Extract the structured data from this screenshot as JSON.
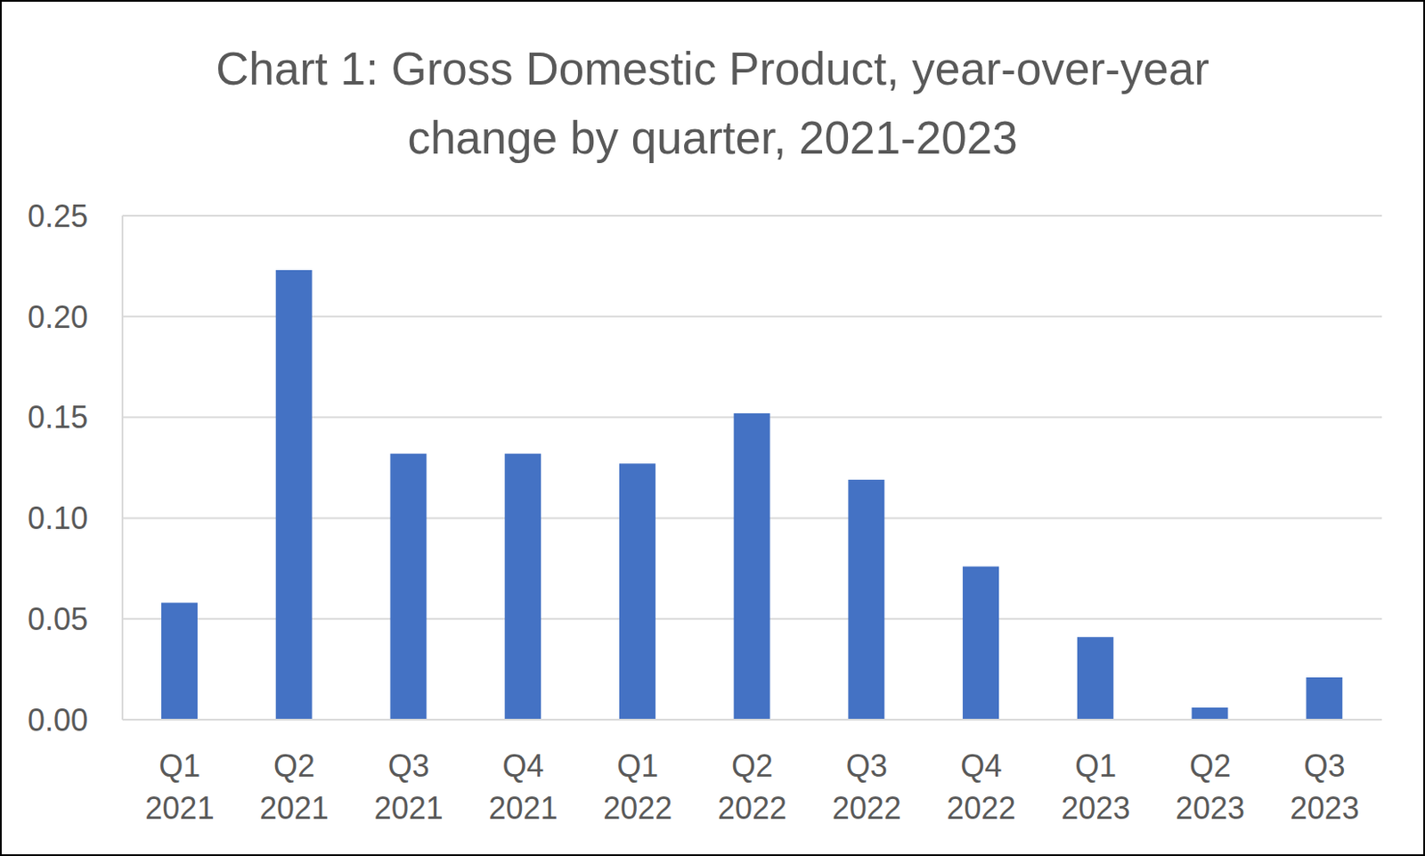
{
  "chart_data": {
    "type": "bar",
    "title": "Chart 1: Gross Domestic Product, year-over-year change by quarter, 2021-2023",
    "categories": [
      "Q1 2021",
      "Q2 2021",
      "Q3 2021",
      "Q4 2021",
      "Q1 2022",
      "Q2 2022",
      "Q3 2022",
      "Q4 2022",
      "Q1 2023",
      "Q2 2023",
      "Q3 2023"
    ],
    "values": [
      0.058,
      0.223,
      0.132,
      0.132,
      0.127,
      0.152,
      0.119,
      0.076,
      0.041,
      0.006,
      0.021
    ],
    "color": "#4472c4",
    "ylim": [
      0,
      0.25
    ],
    "yticks": [
      {
        "value": 0,
        "label": "0.00"
      },
      0.05,
      {
        "value": 0.1,
        "label": "0.10"
      },
      0.15,
      {
        "value": 0.2,
        "label": "0.20"
      },
      0.25
    ],
    "grid": true
  }
}
